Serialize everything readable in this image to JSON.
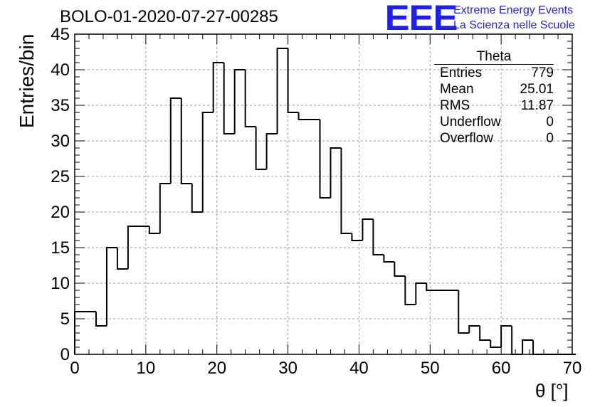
{
  "title": "BOLO-01-2020-07-27-00285",
  "logo": {
    "mark": "EEE",
    "line1": "Extreme Energy Events",
    "line2": "La Scienza nelle Scuole",
    "color": "#1f1fe8"
  },
  "stats": {
    "name": "Theta",
    "rows": [
      {
        "label": "Entries",
        "value": "779"
      },
      {
        "label": "Mean",
        "value": "25.01"
      },
      {
        "label": "RMS",
        "value": "11.87"
      },
      {
        "label": "Underflow",
        "value": "0"
      },
      {
        "label": "Overflow",
        "value": "0"
      }
    ]
  },
  "chart_data": {
    "type": "bar",
    "style": "step-histogram",
    "title": "BOLO-01-2020-07-27-00285",
    "xlabel": "θ [°]",
    "ylabel": "Entries/bin",
    "xlim": [
      0,
      70
    ],
    "ylim": [
      0,
      45
    ],
    "bin_width": 1.5,
    "x_ticks": [
      0,
      10,
      20,
      30,
      40,
      50,
      60,
      70
    ],
    "y_ticks": [
      0,
      5,
      10,
      15,
      20,
      25,
      30,
      35,
      40,
      45
    ],
    "grid": true,
    "values": [
      6,
      6,
      4,
      15,
      12,
      18,
      18,
      17,
      24,
      36,
      24,
      20,
      34,
      41,
      31,
      40,
      32,
      26,
      31,
      43,
      34,
      33,
      33,
      22,
      29,
      17,
      16,
      19,
      14,
      13,
      11,
      7,
      10,
      9,
      9,
      9,
      3,
      4,
      2,
      1,
      4,
      0,
      2,
      0,
      0,
      0,
      0
    ]
  }
}
